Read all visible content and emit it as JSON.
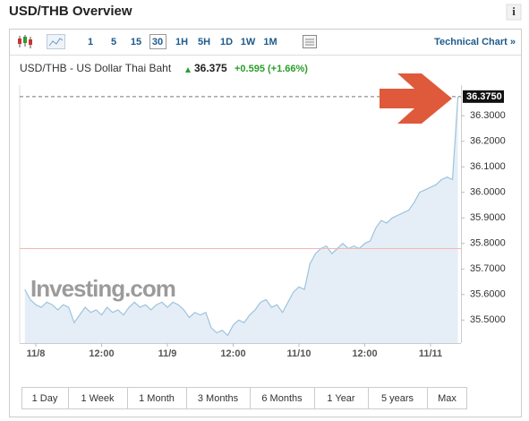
{
  "header": {
    "title": "USD/THB Overview",
    "info": "i"
  },
  "toolbar": {
    "intervals": [
      "1",
      "5",
      "15",
      "30",
      "1H",
      "5H",
      "1D",
      "1W",
      "1M"
    ],
    "selected": "30",
    "technical_link": "Technical Chart »"
  },
  "quote": {
    "name": "USD/THB - US Dollar Thai Baht",
    "price": "36.375",
    "change": "+0.595",
    "change_percent": "(+1.66%)"
  },
  "watermark": "Investing.com",
  "ranges": [
    "1 Day",
    "1 Week",
    "1 Month",
    "3 Months",
    "6 Months",
    "1 Year",
    "5 years",
    "Max"
  ],
  "chart_data": {
    "type": "area",
    "categories": [
      null,
      null,
      "11/8",
      null,
      null,
      null,
      null,
      null,
      null,
      null,
      null,
      null,
      null,
      null,
      "12:00",
      null,
      null,
      null,
      null,
      null,
      null,
      null,
      null,
      null,
      null,
      null,
      "11/9",
      null,
      null,
      null,
      null,
      null,
      null,
      null,
      null,
      null,
      null,
      null,
      "12:00",
      null,
      null,
      null,
      null,
      null,
      null,
      null,
      null,
      null,
      null,
      null,
      "11/10",
      null,
      null,
      null,
      null,
      null,
      null,
      null,
      null,
      null,
      null,
      null,
      "12:00",
      null,
      null,
      null,
      null,
      null,
      null,
      null,
      null,
      null,
      null,
      null,
      "11/11",
      null,
      null,
      null,
      null,
      null
    ],
    "values": [
      35.62,
      35.58,
      35.56,
      35.55,
      35.57,
      35.56,
      35.54,
      35.56,
      35.55,
      35.49,
      35.52,
      35.55,
      35.53,
      35.54,
      35.52,
      35.55,
      35.53,
      35.54,
      35.52,
      35.55,
      35.57,
      35.55,
      35.56,
      35.54,
      35.56,
      35.57,
      35.55,
      35.57,
      35.56,
      35.54,
      35.51,
      35.53,
      35.52,
      35.53,
      35.47,
      35.45,
      35.46,
      35.44,
      35.48,
      35.5,
      35.49,
      35.52,
      35.54,
      35.57,
      35.58,
      35.55,
      35.56,
      35.53,
      35.57,
      35.61,
      35.63,
      35.62,
      35.72,
      35.76,
      35.78,
      35.79,
      35.76,
      35.78,
      35.8,
      35.78,
      35.79,
      35.78,
      35.8,
      35.81,
      35.86,
      35.89,
      35.88,
      35.9,
      35.91,
      35.92,
      35.93,
      35.96,
      36.0,
      36.01,
      36.02,
      36.03,
      36.05,
      36.06,
      36.05,
      36.375
    ],
    "color": "#9dc3df",
    "fill": "#e5eef6",
    "current_price": {
      "value": 36.375,
      "label": "36.3750"
    },
    "previous_close": 35.78,
    "ylim": [
      35.41,
      36.42
    ],
    "yticks": [
      {
        "value": 35.5,
        "label": "35.5000"
      },
      {
        "value": 35.6,
        "label": "35.6000"
      },
      {
        "value": 35.7,
        "label": "35.7000"
      },
      {
        "value": 35.8,
        "label": "35.8000"
      },
      {
        "value": 35.9,
        "label": "35.9000"
      },
      {
        "value": 36.0,
        "label": "36.0000"
      },
      {
        "value": 36.1,
        "label": "36.1000"
      },
      {
        "value": 36.2,
        "label": "36.2000"
      },
      {
        "value": 36.3,
        "label": "36.3000"
      }
    ]
  }
}
